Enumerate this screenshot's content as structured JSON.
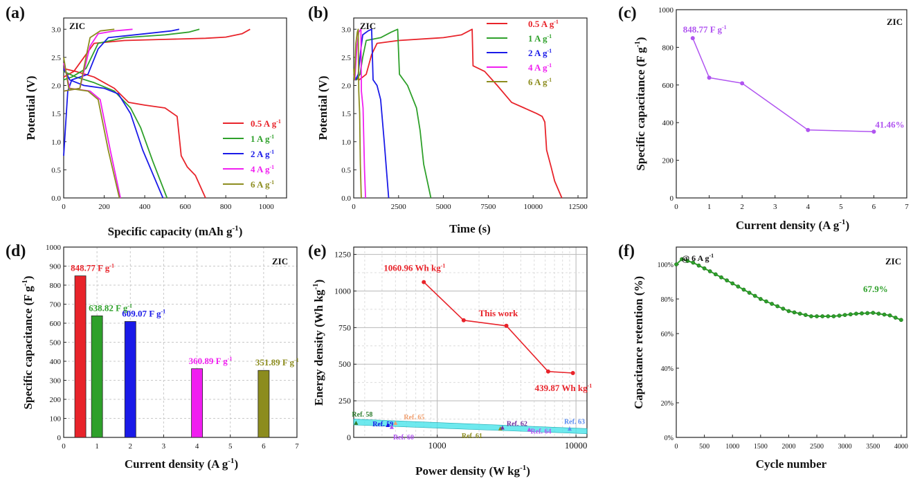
{
  "figure": {
    "colors": {
      "red": "#e8232a",
      "green": "#2ea02a",
      "blue": "#1a1ae8",
      "magenta": "#f01ef0",
      "olive": "#8c8c1e",
      "purple": "#b054f0",
      "cyan": "#3ee2e8",
      "dark_purple": "#7030a0",
      "orange": "#f0a070",
      "light_blue": "#5a8cf0",
      "dark_green": "#2e7d2e"
    }
  },
  "chart_data": [
    {
      "id": "a",
      "type": "line",
      "panel_label": "(a)",
      "corner_text": "ZIC",
      "xlabel": "Specific capacity (mAh g",
      "xlabel_sup": "-1",
      "xlabel_tail": ")",
      "ylabel": "Potential (V)",
      "xlim": [
        0,
        1100
      ],
      "ylim": [
        0,
        3.2
      ],
      "xticks": [
        0,
        200,
        400,
        600,
        800,
        1000
      ],
      "yticks": [
        0.0,
        0.5,
        1.0,
        1.5,
        2.0,
        2.5,
        3.0
      ],
      "legend": [
        "0.5 A g",
        "1 A g",
        "2 A g",
        "4 A g",
        "6 A g"
      ],
      "legend_sup": "-1",
      "legend_colors": [
        "red",
        "green",
        "blue",
        "magenta",
        "olive"
      ],
      "series": [
        {
          "name": "0.5 A g-1",
          "color": "red",
          "charge": [
            [
              0,
              2.15
            ],
            [
              50,
              2.25
            ],
            [
              110,
              2.55
            ],
            [
              150,
              2.75
            ],
            [
              300,
              2.8
            ],
            [
              500,
              2.82
            ],
            [
              700,
              2.84
            ],
            [
              800,
              2.86
            ],
            [
              880,
              2.92
            ],
            [
              920,
              3.0
            ]
          ],
          "discharge": [
            [
              0,
              2.3
            ],
            [
              60,
              2.25
            ],
            [
              150,
              2.15
            ],
            [
              250,
              1.95
            ],
            [
              320,
              1.7
            ],
            [
              400,
              1.65
            ],
            [
              500,
              1.6
            ],
            [
              560,
              1.45
            ],
            [
              580,
              0.75
            ],
            [
              610,
              0.55
            ],
            [
              650,
              0.4
            ],
            [
              700,
              0.0
            ]
          ]
        },
        {
          "name": "1 A g-1",
          "color": "green",
          "charge": [
            [
              0,
              2.1
            ],
            [
              40,
              2.15
            ],
            [
              110,
              2.3
            ],
            [
              170,
              2.75
            ],
            [
              300,
              2.85
            ],
            [
              500,
              2.9
            ],
            [
              620,
              2.95
            ],
            [
              670,
              3.0
            ]
          ],
          "discharge": [
            [
              0,
              2.25
            ],
            [
              60,
              2.15
            ],
            [
              150,
              2.05
            ],
            [
              250,
              1.9
            ],
            [
              330,
              1.6
            ],
            [
              380,
              1.25
            ],
            [
              440,
              0.65
            ],
            [
              510,
              0.0
            ]
          ]
        },
        {
          "name": "2 A g-1",
          "color": "blue",
          "charge": [
            [
              0,
              0.75
            ],
            [
              20,
              1.9
            ],
            [
              40,
              2.1
            ],
            [
              120,
              2.2
            ],
            [
              170,
              2.65
            ],
            [
              220,
              2.85
            ],
            [
              400,
              2.92
            ],
            [
              530,
              2.97
            ],
            [
              570,
              3.0
            ]
          ],
          "discharge": [
            [
              0,
              2.3
            ],
            [
              30,
              2.1
            ],
            [
              100,
              2.0
            ],
            [
              200,
              1.95
            ],
            [
              270,
              1.85
            ],
            [
              330,
              1.5
            ],
            [
              390,
              0.85
            ],
            [
              490,
              0.0
            ]
          ]
        },
        {
          "name": "4 A g-1",
          "color": "magenta",
          "charge": [
            [
              0,
              1.9
            ],
            [
              80,
              1.95
            ],
            [
              130,
              2.7
            ],
            [
              170,
              2.92
            ],
            [
              250,
              2.97
            ],
            [
              340,
              3.0
            ]
          ],
          "discharge": [
            [
              0,
              2.4
            ],
            [
              30,
              1.95
            ],
            [
              130,
              1.9
            ],
            [
              180,
              1.75
            ],
            [
              230,
              0.85
            ],
            [
              280,
              0.0
            ]
          ]
        },
        {
          "name": "6 A g-1",
          "color": "olive",
          "charge": [
            [
              0,
              1.9
            ],
            [
              80,
              1.95
            ],
            [
              110,
              2.5
            ],
            [
              130,
              2.85
            ],
            [
              180,
              2.97
            ],
            [
              250,
              3.0
            ]
          ],
          "discharge": [
            [
              0,
              2.5
            ],
            [
              25,
              1.95
            ],
            [
              120,
              1.9
            ],
            [
              170,
              1.75
            ],
            [
              220,
              0.85
            ],
            [
              275,
              0.0
            ]
          ]
        }
      ]
    },
    {
      "id": "b",
      "type": "line",
      "panel_label": "(b)",
      "corner_text": "ZIC",
      "xlabel": "Time (s)",
      "ylabel": "Potential (V)",
      "xlim": [
        0,
        13000
      ],
      "ylim": [
        0,
        3.2
      ],
      "xticks": [
        0,
        2500,
        5000,
        7500,
        10000,
        12500
      ],
      "yticks": [
        0.0,
        0.5,
        1.0,
        1.5,
        2.0,
        2.5,
        3.0
      ],
      "legend": [
        "0.5 A g",
        "1 A g",
        "2 A g",
        "4 A g",
        "6 A g"
      ],
      "legend_sup": "-1",
      "legend_colors": [
        "red",
        "green",
        "blue",
        "magenta",
        "olive"
      ],
      "series": [
        {
          "name": "0.5 A g-1",
          "color": "red",
          "points": [
            [
              0,
              2.15
            ],
            [
              300,
              2.1
            ],
            [
              700,
              2.2
            ],
            [
              1000,
              2.55
            ],
            [
              1300,
              2.75
            ],
            [
              2500,
              2.8
            ],
            [
              5000,
              2.85
            ],
            [
              6000,
              2.9
            ],
            [
              6600,
              3.0
            ],
            [
              6650,
              2.35
            ],
            [
              7300,
              2.25
            ],
            [
              8000,
              2.0
            ],
            [
              8800,
              1.7
            ],
            [
              9500,
              1.6
            ],
            [
              10200,
              1.5
            ],
            [
              10500,
              1.45
            ],
            [
              10650,
              1.35
            ],
            [
              10750,
              0.85
            ],
            [
              11000,
              0.55
            ],
            [
              11200,
              0.3
            ],
            [
              11600,
              0.0
            ]
          ]
        },
        {
          "name": "1 A g-1",
          "color": "green",
          "points": [
            [
              0,
              2.15
            ],
            [
              150,
              2.1
            ],
            [
              350,
              2.2
            ],
            [
              500,
              2.5
            ],
            [
              700,
              2.8
            ],
            [
              1500,
              2.85
            ],
            [
              2100,
              2.95
            ],
            [
              2450,
              3.0
            ],
            [
              2550,
              2.2
            ],
            [
              3000,
              2.0
            ],
            [
              3500,
              1.6
            ],
            [
              3700,
              1.2
            ],
            [
              3900,
              0.6
            ],
            [
              4300,
              0.0
            ]
          ]
        },
        {
          "name": "2 A g-1",
          "color": "blue",
          "points": [
            [
              0,
              2.2
            ],
            [
              100,
              2.1
            ],
            [
              250,
              2.2
            ],
            [
              380,
              2.6
            ],
            [
              500,
              2.9
            ],
            [
              800,
              2.97
            ],
            [
              1000,
              3.0
            ],
            [
              1080,
              2.1
            ],
            [
              1300,
              2.0
            ],
            [
              1500,
              1.75
            ],
            [
              1700,
              1.0
            ],
            [
              1950,
              0.0
            ]
          ]
        },
        {
          "name": "4 A g-1",
          "color": "magenta",
          "points": [
            [
              0,
              2.2
            ],
            [
              60,
              2.1
            ],
            [
              180,
              2.7
            ],
            [
              280,
              2.95
            ],
            [
              400,
              3.0
            ],
            [
              430,
              1.9
            ],
            [
              520,
              1.6
            ],
            [
              600,
              0.5
            ],
            [
              660,
              0.0
            ]
          ]
        },
        {
          "name": "6 A g-1",
          "color": "olive",
          "points": [
            [
              0,
              2.3
            ],
            [
              40,
              2.1
            ],
            [
              120,
              2.75
            ],
            [
              200,
              2.95
            ],
            [
              250,
              3.0
            ],
            [
              280,
              1.9
            ],
            [
              330,
              1.5
            ],
            [
              370,
              0.6
            ],
            [
              420,
              0.0
            ]
          ]
        }
      ]
    },
    {
      "id": "c",
      "type": "line",
      "panel_label": "(c)",
      "corner_text": "ZIC",
      "xlabel": "Current density (A g",
      "xlabel_sup": "-1",
      "xlabel_tail": ")",
      "ylabel": "Specific capacitance (F g",
      "ylabel_sup": "-1",
      "ylabel_tail": ")",
      "xlim": [
        0,
        7
      ],
      "ylim": [
        0,
        1000
      ],
      "xticks": [
        0,
        1,
        2,
        3,
        4,
        5,
        6,
        7
      ],
      "yticks": [
        0,
        200,
        400,
        600,
        800,
        1000
      ],
      "color": "purple",
      "x": [
        0.5,
        1,
        2,
        4,
        6
      ],
      "y": [
        848.77,
        638.82,
        609.07,
        360.89,
        351.89
      ],
      "annotations": [
        {
          "text": "848.77 F g",
          "sup": "-1",
          "x": 0.5,
          "y": 848.77
        },
        {
          "text": "41.46%",
          "x": 6,
          "y": 351.89
        }
      ]
    },
    {
      "id": "d",
      "type": "bar",
      "panel_label": "(d)",
      "corner_text": "ZIC",
      "xlabel": "Current density (A g",
      "xlabel_sup": "-1",
      "xlabel_tail": ")",
      "ylabel": "Specific capacitance (F g",
      "ylabel_sup": "-1",
      "ylabel_tail": ")",
      "xlim": [
        0,
        7
      ],
      "ylim": [
        0,
        1000
      ],
      "xticks": [
        0,
        1,
        2,
        3,
        4,
        5,
        6,
        7
      ],
      "yticks": [
        0,
        100,
        200,
        300,
        400,
        500,
        600,
        700,
        800,
        900,
        1000
      ],
      "x": [
        0.5,
        1,
        2,
        4,
        6
      ],
      "values": [
        848.77,
        638.82,
        609.07,
        360.89,
        351.89
      ],
      "bar_colors": [
        "red",
        "green",
        "blue",
        "magenta",
        "olive"
      ],
      "labels": [
        "848.77 F g",
        "638.82 F g",
        "609.07 F g",
        "360.89 F g",
        "351.89 F g"
      ],
      "label_sup": "-1"
    },
    {
      "id": "e",
      "type": "line",
      "panel_label": "(e)",
      "xlabel": "Power density (W kg",
      "xlabel_sup": "-1",
      "xlabel_tail": ")",
      "ylabel": "Energy density (Wh kg",
      "ylabel_sup": "-1",
      "ylabel_tail": ")",
      "xscale": "log",
      "xlim": [
        250,
        12000
      ],
      "ylim": [
        0,
        1300
      ],
      "xticks": [
        1000,
        10000
      ],
      "yticks": [
        0,
        250,
        500,
        750,
        1000,
        1250
      ],
      "this_work": {
        "x": [
          800,
          1550,
          3150,
          6300,
          9500
        ],
        "y": [
          1060.96,
          800,
          762,
          450,
          439.87
        ],
        "color": "red"
      },
      "annotations": [
        {
          "text": "1060.96 Wh kg",
          "sup": "-1",
          "color": "red"
        },
        {
          "text": "This work",
          "color": "red"
        },
        {
          "text": "439.87 Wh kg",
          "sup": "-1",
          "color": "red"
        }
      ],
      "band": {
        "color": "cyan",
        "x": [
          250,
          12000
        ],
        "y_upper": [
          125,
          60
        ],
        "y_lower": [
          85,
          25
        ]
      },
      "references": [
        {
          "label": "Ref. 58",
          "x": 260,
          "y": 100,
          "color": "dark_green"
        },
        {
          "label": "Ref. 59",
          "x": 440,
          "y": 85,
          "color": "blue"
        },
        {
          "label": "Ref. 60",
          "x": 470,
          "y": 72,
          "color": "purple"
        },
        {
          "label": "Ref. 65",
          "x": 500,
          "y": 100,
          "color": "orange"
        },
        {
          "label": "Ref. 61",
          "x": 2850,
          "y": 62,
          "color": "olive"
        },
        {
          "label": "Ref. 62",
          "x": 2950,
          "y": 68,
          "color": "dark_purple"
        },
        {
          "label": "Ref. 64",
          "x": 4600,
          "y": 55,
          "color": "purple"
        },
        {
          "label": "Ref. 63",
          "x": 9000,
          "y": 60,
          "color": "light_blue"
        }
      ]
    },
    {
      "id": "f",
      "type": "line",
      "panel_label": "(f)",
      "corner_text": "ZIC",
      "note": "@ 6 A g",
      "note_sup": "-1",
      "xlabel": "Cycle number",
      "ylabel": "Capacitance retention (%)",
      "xlim": [
        0,
        4100
      ],
      "ylim": [
        0,
        110
      ],
      "xticks": [
        0,
        500,
        1000,
        1500,
        2000,
        2500,
        3000,
        3500,
        4000
      ],
      "yticks": [
        0,
        20,
        40,
        60,
        80,
        100
      ],
      "ytick_labels": [
        "0%",
        "20%",
        "40%",
        "60%",
        "80%",
        "100%"
      ],
      "color": "green",
      "curve": [
        [
          0,
          100
        ],
        [
          100,
          103
        ],
        [
          300,
          101
        ],
        [
          600,
          96
        ],
        [
          1000,
          89
        ],
        [
          1500,
          80
        ],
        [
          2000,
          73
        ],
        [
          2400,
          70
        ],
        [
          2800,
          70
        ],
        [
          3200,
          71.5
        ],
        [
          3500,
          72
        ],
        [
          3800,
          70.5
        ],
        [
          4000,
          67.9
        ]
      ],
      "end_label": "67.9%"
    }
  ]
}
